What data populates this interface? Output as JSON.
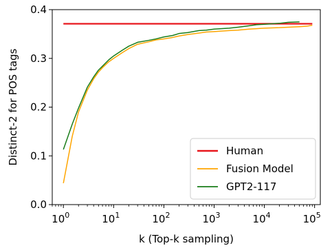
{
  "chart_data": {
    "type": "line",
    "xscale": "log",
    "xlim": [
      0.6,
      130000
    ],
    "ylim": [
      0.0,
      0.4
    ],
    "xlabel": "k (Top-k sampling)",
    "ylabel": "Distinct-2 for POS tags",
    "xticks": [
      {
        "value": 1,
        "base": "10",
        "exp": "0"
      },
      {
        "value": 10,
        "base": "10",
        "exp": "1"
      },
      {
        "value": 100,
        "base": "10",
        "exp": "2"
      },
      {
        "value": 1000,
        "base": "10",
        "exp": "3"
      },
      {
        "value": 10000,
        "base": "10",
        "exp": "4"
      },
      {
        "value": 100000,
        "base": "10",
        "exp": "5"
      }
    ],
    "yticks": [
      {
        "value": 0.0,
        "label": "0.0"
      },
      {
        "value": 0.1,
        "label": "0.1"
      },
      {
        "value": 0.2,
        "label": "0.2"
      },
      {
        "value": 0.3,
        "label": "0.3"
      },
      {
        "value": 0.4,
        "label": "0.4"
      }
    ],
    "legend_position": "lower-right",
    "series": [
      {
        "name": "Human",
        "color": "#e8161c",
        "width": 2.2,
        "x": [
          1,
          90000
        ],
        "y": [
          0.371,
          0.371
        ]
      },
      {
        "name": "Fusion Model",
        "color": "#ffa500",
        "width": 1.5,
        "x": [
          1,
          1.5,
          2,
          3,
          4,
          5,
          6,
          8,
          10,
          15,
          20,
          30,
          50,
          70,
          100,
          150,
          200,
          300,
          500,
          700,
          1000,
          2000,
          3000,
          5000,
          7000,
          10000,
          20000,
          30000,
          50000,
          70000,
          90000
        ],
        "y": [
          0.044,
          0.14,
          0.19,
          0.235,
          0.258,
          0.272,
          0.281,
          0.293,
          0.3,
          0.312,
          0.32,
          0.329,
          0.334,
          0.338,
          0.34,
          0.343,
          0.346,
          0.349,
          0.352,
          0.354,
          0.355,
          0.357,
          0.358,
          0.36,
          0.361,
          0.362,
          0.363,
          0.364,
          0.365,
          0.366,
          0.368
        ]
      },
      {
        "name": "GPT2-117",
        "color": "#1a7d1a",
        "width": 1.5,
        "x": [
          1,
          1.5,
          2,
          3,
          4,
          5,
          6,
          8,
          10,
          15,
          20,
          30,
          50,
          70,
          100,
          150,
          200,
          300,
          500,
          700,
          1000,
          2000,
          3000,
          5000,
          7000,
          10000,
          20000,
          30000,
          50000
        ],
        "y": [
          0.113,
          0.165,
          0.198,
          0.241,
          0.262,
          0.276,
          0.284,
          0.297,
          0.305,
          0.317,
          0.325,
          0.333,
          0.337,
          0.34,
          0.344,
          0.347,
          0.351,
          0.353,
          0.357,
          0.358,
          0.36,
          0.362,
          0.364,
          0.367,
          0.369,
          0.37,
          0.372,
          0.374,
          0.375
        ]
      }
    ]
  }
}
